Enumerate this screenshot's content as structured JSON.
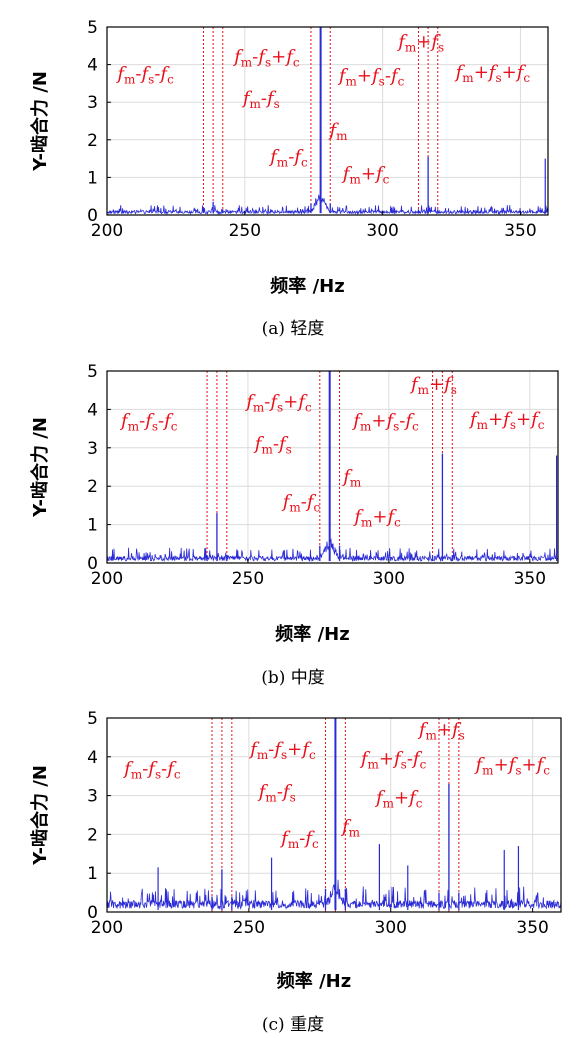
{
  "colors": {
    "signal": "#2b2bd6",
    "annotation": "#e8101a",
    "guide": "#e8101a",
    "axis": "#000000",
    "grid": "#dcdcdc"
  },
  "chart_data": [
    {
      "type": "line",
      "title": "",
      "caption": "(a) 轻度",
      "xlabel": "频率 /Hz",
      "ylabel": "Y-啮合力 /N",
      "xlim": [
        200,
        360
      ],
      "ylim": [
        0,
        5
      ],
      "xticks": [
        "200",
        "250",
        "300",
        "350"
      ],
      "yticks": [
        "0",
        "1",
        "2",
        "3",
        "4",
        "5"
      ],
      "grid": true,
      "noise_level": 0.12,
      "components": [
        {
          "label": "fm-fs-fc",
          "x": 235,
          "y": 0.2
        },
        {
          "label": "fm-fs",
          "x": 238.5,
          "y": 0.35
        },
        {
          "label": "fm-fs+fc",
          "x": 242,
          "y": 0.15
        },
        {
          "label": "fm-fc",
          "x": 274,
          "y": 0.3
        },
        {
          "label": "fm",
          "x": 277.5,
          "y": 5.0
        },
        {
          "label": "fm+fc",
          "x": 281,
          "y": 0.3
        },
        {
          "label": "fm+fs-fc",
          "x": 313,
          "y": 0.15
        },
        {
          "label": "fm+fs",
          "x": 316.5,
          "y": 1.55
        },
        {
          "label": "fm+fs+fc",
          "x": 320,
          "y": 0.15
        }
      ],
      "extra_peaks": [
        {
          "x": 359,
          "y": 1.5
        }
      ],
      "labels": [
        {
          "text": [
            "f",
            "m",
            "-",
            "f",
            "s",
            "-",
            "f",
            "c"
          ],
          "tx": 214,
          "ty": 3.6
        },
        {
          "text": [
            "f",
            "m",
            "-",
            "f",
            "s",
            "+",
            "f",
            "c"
          ],
          "tx": 258,
          "ty": 4.05
        },
        {
          "text": [
            "f",
            "m",
            "-",
            "f",
            "s"
          ],
          "tx": 256,
          "ty": 2.95
        },
        {
          "text": [
            "f",
            "m",
            "-",
            "f",
            "c"
          ],
          "tx": 266,
          "ty": 1.4
        },
        {
          "text": [
            "f",
            "m"
          ],
          "tx": 284,
          "ty": 2.1
        },
        {
          "text": [
            "f",
            "m",
            "+",
            "f",
            "c"
          ],
          "tx": 294,
          "ty": 0.95
        },
        {
          "text": [
            "f",
            "m",
            "+",
            "f",
            "s"
          ],
          "tx": 314,
          "ty": 4.45
        },
        {
          "text": [
            "f",
            "m",
            "+",
            "f",
            "s",
            "-",
            "f",
            "c"
          ],
          "tx": 296,
          "ty": 3.55
        },
        {
          "text": [
            "f",
            "m",
            "+",
            "f",
            "s",
            "+",
            "f",
            "c"
          ],
          "tx": 340,
          "ty": 3.65
        }
      ]
    },
    {
      "type": "line",
      "title": "",
      "caption": "(b) 中度",
      "xlabel": "频率 /Hz",
      "ylabel": "Y-啮合力 /N",
      "xlim": [
        200,
        360
      ],
      "ylim": [
        0,
        5
      ],
      "xticks": [
        "200",
        "250",
        "300",
        "350"
      ],
      "yticks": [
        "0",
        "1",
        "2",
        "3",
        "4",
        "5"
      ],
      "grid": true,
      "noise_level": 0.18,
      "components": [
        {
          "label": "fm-fs-fc",
          "x": 235.5,
          "y": 0.2
        },
        {
          "label": "fm-fs",
          "x": 239,
          "y": 1.3
        },
        {
          "label": "fm-fs+fc",
          "x": 242.5,
          "y": 0.2
        },
        {
          "label": "fm-fc",
          "x": 275.5,
          "y": 0.45
        },
        {
          "label": "fm",
          "x": 279,
          "y": 5.0
        },
        {
          "label": "fm+fc",
          "x": 282.5,
          "y": 0.45
        },
        {
          "label": "fm+fs-fc",
          "x": 315.5,
          "y": 0.2
        },
        {
          "label": "fm+fs",
          "x": 319,
          "y": 2.85
        },
        {
          "label": "fm+fs+fc",
          "x": 322.5,
          "y": 0.2
        }
      ],
      "extra_peaks": [
        {
          "x": 359.5,
          "y": 2.8
        }
      ],
      "labels": [
        {
          "text": [
            "f",
            "m",
            "-",
            "f",
            "s",
            "-",
            "f",
            "c"
          ],
          "tx": 215,
          "ty": 3.55
        },
        {
          "text": [
            "f",
            "m",
            "-",
            "f",
            "s",
            "+",
            "f",
            "c"
          ],
          "tx": 261,
          "ty": 4.05
        },
        {
          "text": [
            "f",
            "m",
            "-",
            "f",
            "s"
          ],
          "tx": 259,
          "ty": 2.95
        },
        {
          "text": [
            "f",
            "m",
            "-",
            "f",
            "c"
          ],
          "tx": 269,
          "ty": 1.45
        },
        {
          "text": [
            "f",
            "m"
          ],
          "tx": 287,
          "ty": 2.1
        },
        {
          "text": [
            "f",
            "m",
            "+",
            "f",
            "c"
          ],
          "tx": 296,
          "ty": 1.05
        },
        {
          "text": [
            "f",
            "m",
            "+",
            "f",
            "s"
          ],
          "tx": 316,
          "ty": 4.5
        },
        {
          "text": [
            "f",
            "m",
            "+",
            "f",
            "s",
            "-",
            "f",
            "c"
          ],
          "tx": 299,
          "ty": 3.55
        },
        {
          "text": [
            "f",
            "m",
            "+",
            "f",
            "s",
            "+",
            "f",
            "c"
          ],
          "tx": 342,
          "ty": 3.6
        }
      ]
    },
    {
      "type": "line",
      "title": "",
      "caption": "(c) 重度",
      "xlabel": "频率 /Hz",
      "ylabel": "Y-啮合力 /N",
      "xlim": [
        200,
        360
      ],
      "ylim": [
        0,
        5
      ],
      "xticks": [
        "200",
        "250",
        "300",
        "350"
      ],
      "yticks": [
        "0",
        "1",
        "2",
        "3",
        "4",
        "5"
      ],
      "grid": true,
      "noise_level": 0.3,
      "components": [
        {
          "label": "fm-fs-fc",
          "x": 237,
          "y": 0.4
        },
        {
          "label": "fm-fs",
          "x": 240.5,
          "y": 1.1
        },
        {
          "label": "fm-fs+fc",
          "x": 244,
          "y": 0.4
        },
        {
          "label": "fm-fc",
          "x": 277,
          "y": 0.6
        },
        {
          "label": "fm",
          "x": 280.5,
          "y": 5.0
        },
        {
          "label": "fm+fc",
          "x": 284,
          "y": 0.6
        },
        {
          "label": "fm+fs-fc",
          "x": 317,
          "y": 0.5
        },
        {
          "label": "fm+fs",
          "x": 320.5,
          "y": 3.3
        },
        {
          "label": "fm+fs+fc",
          "x": 324,
          "y": 0.5
        }
      ],
      "extra_peaks": [
        {
          "x": 258,
          "y": 1.4
        },
        {
          "x": 296,
          "y": 1.75
        },
        {
          "x": 340,
          "y": 1.6
        },
        {
          "x": 345,
          "y": 1.7
        },
        {
          "x": 218,
          "y": 1.15
        },
        {
          "x": 306,
          "y": 1.2
        }
      ],
      "labels": [
        {
          "text": [
            "f",
            "m",
            "-",
            "f",
            "s",
            "-",
            "f",
            "c"
          ],
          "tx": 216,
          "ty": 3.55
        },
        {
          "text": [
            "f",
            "m",
            "-",
            "f",
            "s",
            "+",
            "f",
            "c"
          ],
          "tx": 262,
          "ty": 4.05
        },
        {
          "text": [
            "f",
            "m",
            "-",
            "f",
            "s"
          ],
          "tx": 260,
          "ty": 2.95
        },
        {
          "text": [
            "f",
            "m",
            "+",
            "f",
            "c"
          ],
          "tx": 303,
          "ty": 2.8
        },
        {
          "text": [
            "f",
            "m",
            "-",
            "f",
            "c"
          ],
          "tx": 268,
          "ty": 1.75
        },
        {
          "text": [
            "f",
            "m"
          ],
          "tx": 286,
          "ty": 2.05
        },
        {
          "text": [
            "f",
            "m",
            "+",
            "f",
            "s"
          ],
          "tx": 318,
          "ty": 4.55
        },
        {
          "text": [
            "f",
            "m",
            "+",
            "f",
            "s",
            "-",
            "f",
            "c"
          ],
          "tx": 301,
          "ty": 3.8
        },
        {
          "text": [
            "f",
            "m",
            "+",
            "f",
            "s",
            "+",
            "f",
            "c"
          ],
          "tx": 343,
          "ty": 3.65
        }
      ]
    }
  ]
}
